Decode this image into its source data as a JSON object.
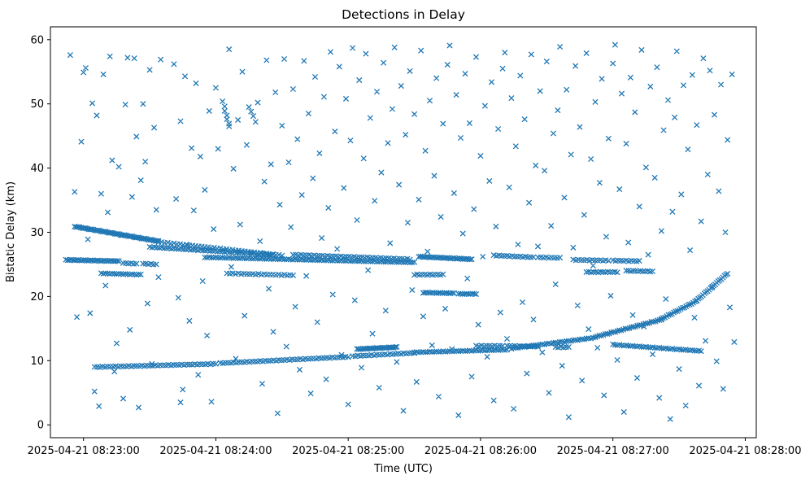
{
  "chart_data": {
    "type": "scatter",
    "title": "Detections in Delay",
    "xlabel": "Time (UTC)",
    "ylabel": "Bistatic Delay (km)",
    "marker": "x",
    "marker_color": "#1f77b4",
    "x_unit": "seconds after 2025-04-21 08:23:00",
    "x_domain_seconds": [
      -15,
      305
    ],
    "y_domain": [
      -2,
      62
    ],
    "x_tick_seconds": [
      0,
      60,
      120,
      180,
      240,
      300
    ],
    "x_tick_labels": [
      "2025-04-21 08:23:00",
      "2025-04-21 08:24:00",
      "2025-04-21 08:25:00",
      "2025-04-21 08:26:00",
      "2025-04-21 08:27:00",
      "2025-04-21 08:28:00"
    ],
    "y_ticks": [
      0,
      10,
      20,
      30,
      40,
      50,
      60
    ],
    "grid": false,
    "legend": "none",
    "track_segment_format": [
      "t_start_s",
      "t_end_s",
      "delay_start_km",
      "delay_end_km",
      "sample_interval_s"
    ],
    "track_segments": [
      [
        -4,
        34,
        30.9,
        28.6,
        0.7
      ],
      [
        30,
        86,
        27.7,
        26.5,
        1.1
      ],
      [
        34,
        90,
        28.5,
        26.4,
        1.4
      ],
      [
        -8,
        16,
        25.7,
        25.5,
        0.8
      ],
      [
        18,
        24,
        25.2,
        25.1,
        1.2
      ],
      [
        27,
        33,
        25.1,
        25.0,
        1.2
      ],
      [
        8,
        26,
        23.6,
        23.4,
        1.0
      ],
      [
        55,
        150,
        26.1,
        25.3,
        1.0
      ],
      [
        65,
        95,
        23.6,
        23.3,
        1.3
      ],
      [
        95,
        148,
        26.5,
        25.8,
        1.2
      ],
      [
        152,
        176,
        26.2,
        25.8,
        0.8
      ],
      [
        186,
        204,
        26.4,
        26.1,
        1.2
      ],
      [
        206,
        216,
        26.1,
        26.0,
        1.2
      ],
      [
        222,
        238,
        25.7,
        25.6,
        1.2
      ],
      [
        240,
        252,
        25.6,
        25.5,
        1.2
      ],
      [
        150,
        163,
        23.4,
        23.4,
        1.2
      ],
      [
        228,
        242,
        23.8,
        23.8,
        1.1
      ],
      [
        246,
        258,
        24.0,
        23.9,
        1.1
      ],
      [
        5,
        60,
        9.0,
        9.5,
        1.2
      ],
      [
        62,
        120,
        9.6,
        10.6,
        1.2
      ],
      [
        122,
        150,
        10.7,
        11.2,
        1.2
      ],
      [
        150,
        192,
        11.3,
        11.7,
        1.0
      ],
      [
        124,
        142,
        11.8,
        12.1,
        0.7
      ],
      [
        194,
        232,
        11.9,
        13.6,
        1.0
      ],
      [
        232,
        262,
        13.7,
        16.4,
        0.9
      ],
      [
        262,
        278,
        16.5,
        19.3,
        0.8
      ],
      [
        278,
        292,
        19.4,
        23.6,
        0.7
      ],
      [
        178,
        190,
        12.3,
        12.3,
        1.2
      ],
      [
        192,
        206,
        12.3,
        12.2,
        1.2
      ],
      [
        214,
        220,
        12.1,
        12.1,
        1.2
      ],
      [
        240,
        280,
        12.5,
        11.5,
        1.0
      ],
      [
        154,
        168,
        20.6,
        20.5,
        0.9
      ],
      [
        170,
        178,
        20.4,
        20.4,
        0.9
      ]
    ],
    "clutter_points": [
      [
        -6,
        57.6
      ],
      [
        -4,
        36.3
      ],
      [
        -3,
        16.8
      ],
      [
        -1,
        44.1
      ],
      [
        0,
        54.9
      ],
      [
        1,
        55.6
      ],
      [
        2,
        28.9
      ],
      [
        3,
        17.4
      ],
      [
        4,
        50.1
      ],
      [
        5,
        5.2
      ],
      [
        6,
        48.2
      ],
      [
        7,
        2.9
      ],
      [
        8,
        36.0
      ],
      [
        9,
        54.6
      ],
      [
        10,
        21.7
      ],
      [
        11,
        33.1
      ],
      [
        12,
        57.4
      ],
      [
        13,
        41.2
      ],
      [
        14,
        8.3
      ],
      [
        15,
        12.7
      ],
      [
        16,
        40.2
      ],
      [
        17,
        29.5
      ],
      [
        18,
        4.1
      ],
      [
        19,
        49.9
      ],
      [
        20,
        57.2
      ],
      [
        21,
        14.8
      ],
      [
        22,
        35.5
      ],
      [
        23,
        57.1
      ],
      [
        24,
        44.9
      ],
      [
        25,
        2.7
      ],
      [
        26,
        38.1
      ],
      [
        27,
        50.0
      ],
      [
        28,
        41.0
      ],
      [
        29,
        18.9
      ],
      [
        30,
        55.3
      ],
      [
        31,
        9.5
      ],
      [
        32,
        46.3
      ],
      [
        33,
        33.5
      ],
      [
        34,
        23.0
      ],
      [
        35,
        56.9
      ],
      [
        41,
        56.2
      ],
      [
        42,
        35.2
      ],
      [
        43,
        19.8
      ],
      [
        44,
        47.3
      ],
      [
        44,
        3.5
      ],
      [
        45,
        5.5
      ],
      [
        46,
        54.3
      ],
      [
        47,
        28.0
      ],
      [
        48,
        16.2
      ],
      [
        49,
        43.1
      ],
      [
        50,
        33.4
      ],
      [
        51,
        53.2
      ],
      [
        52,
        7.8
      ],
      [
        53,
        41.8
      ],
      [
        54,
        22.4
      ],
      [
        55,
        36.6
      ],
      [
        56,
        13.9
      ],
      [
        57,
        48.9
      ],
      [
        58,
        3.6
      ],
      [
        59,
        30.5
      ],
      [
        60,
        52.5
      ],
      [
        61,
        43.0
      ],
      [
        63,
        50.4
      ],
      [
        64,
        49.6
      ],
      [
        64,
        48.9
      ],
      [
        65,
        48.2
      ],
      [
        65,
        47.6
      ],
      [
        66,
        46.9
      ],
      [
        66,
        46.5
      ],
      [
        66,
        58.5
      ],
      [
        67,
        24.6
      ],
      [
        68,
        39.9
      ],
      [
        69,
        10.3
      ],
      [
        70,
        47.5
      ],
      [
        71,
        31.2
      ],
      [
        72,
        55.0
      ],
      [
        73,
        17.0
      ],
      [
        74,
        43.6
      ],
      [
        75,
        49.5
      ],
      [
        76,
        48.8
      ],
      [
        77,
        48.1
      ],
      [
        78,
        47.2
      ],
      [
        79,
        50.2
      ],
      [
        80,
        28.6
      ],
      [
        81,
        6.4
      ],
      [
        82,
        37.9
      ],
      [
        83,
        56.8
      ],
      [
        84,
        21.2
      ],
      [
        85,
        40.6
      ],
      [
        86,
        14.5
      ],
      [
        87,
        51.8
      ],
      [
        88,
        1.8
      ],
      [
        89,
        34.3
      ],
      [
        90,
        46.6
      ],
      [
        91,
        57.0
      ],
      [
        92,
        12.2
      ],
      [
        93,
        40.9
      ],
      [
        94,
        30.8
      ],
      [
        95,
        52.3
      ],
      [
        96,
        18.4
      ],
      [
        97,
        44.5
      ],
      [
        98,
        8.6
      ],
      [
        99,
        35.8
      ],
      [
        100,
        56.7
      ],
      [
        101,
        23.2
      ],
      [
        102,
        48.5
      ],
      [
        103,
        4.9
      ],
      [
        104,
        38.4
      ],
      [
        105,
        54.2
      ],
      [
        106,
        16.0
      ],
      [
        107,
        42.3
      ],
      [
        108,
        29.1
      ],
      [
        109,
        51.1
      ],
      [
        110,
        7.1
      ],
      [
        111,
        33.8
      ],
      [
        112,
        58.1
      ],
      [
        113,
        20.3
      ],
      [
        114,
        45.7
      ],
      [
        115,
        27.4
      ],
      [
        116,
        55.8
      ],
      [
        117,
        10.9
      ],
      [
        118,
        36.9
      ],
      [
        119,
        50.8
      ],
      [
        120,
        3.2
      ],
      [
        121,
        44.3
      ],
      [
        122,
        58.7
      ],
      [
        123,
        19.4
      ],
      [
        124,
        31.9
      ],
      [
        125,
        53.7
      ],
      [
        126,
        8.9
      ],
      [
        127,
        41.5
      ],
      [
        128,
        57.8
      ],
      [
        129,
        24.1
      ],
      [
        130,
        47.8
      ],
      [
        131,
        14.2
      ],
      [
        132,
        34.9
      ],
      [
        133,
        51.9
      ],
      [
        134,
        5.8
      ],
      [
        135,
        39.3
      ],
      [
        136,
        56.4
      ],
      [
        137,
        17.8
      ],
      [
        138,
        43.9
      ],
      [
        139,
        28.3
      ],
      [
        140,
        49.2
      ],
      [
        141,
        58.8
      ],
      [
        142,
        9.8
      ],
      [
        143,
        37.4
      ],
      [
        144,
        52.8
      ],
      [
        145,
        2.2
      ],
      [
        146,
        45.2
      ],
      [
        147,
        31.5
      ],
      [
        148,
        55.1
      ],
      [
        149,
        21.0
      ],
      [
        150,
        48.4
      ],
      [
        151,
        6.7
      ],
      [
        152,
        35.1
      ],
      [
        153,
        58.3
      ],
      [
        154,
        16.9
      ],
      [
        155,
        42.7
      ],
      [
        156,
        27.0
      ],
      [
        157,
        50.5
      ],
      [
        158,
        12.4
      ],
      [
        159,
        38.8
      ],
      [
        160,
        54.0
      ],
      [
        161,
        4.4
      ],
      [
        162,
        32.4
      ],
      [
        163,
        46.9
      ],
      [
        164,
        18.1
      ],
      [
        165,
        56.1
      ],
      [
        166,
        59.1
      ],
      [
        167,
        11.8
      ],
      [
        168,
        36.1
      ],
      [
        169,
        51.4
      ],
      [
        170,
        1.5
      ],
      [
        171,
        44.7
      ],
      [
        172,
        29.8
      ],
      [
        173,
        54.7
      ],
      [
        174,
        22.8
      ],
      [
        175,
        47.0
      ],
      [
        176,
        7.5
      ],
      [
        177,
        33.6
      ],
      [
        178,
        57.3
      ],
      [
        179,
        15.6
      ],
      [
        180,
        41.9
      ],
      [
        181,
        26.2
      ],
      [
        182,
        49.7
      ],
      [
        183,
        10.6
      ],
      [
        184,
        38.0
      ],
      [
        185,
        53.4
      ],
      [
        186,
        3.8
      ],
      [
        187,
        30.9
      ],
      [
        188,
        46.1
      ],
      [
        189,
        17.5
      ],
      [
        190,
        55.5
      ],
      [
        191,
        58.0
      ],
      [
        192,
        13.4
      ],
      [
        193,
        37.0
      ],
      [
        194,
        50.9
      ],
      [
        195,
        2.5
      ],
      [
        196,
        43.4
      ],
      [
        197,
        28.1
      ],
      [
        198,
        54.4
      ],
      [
        199,
        19.1
      ],
      [
        200,
        47.6
      ],
      [
        201,
        8.0
      ],
      [
        202,
        34.6
      ],
      [
        203,
        57.7
      ],
      [
        204,
        16.4
      ],
      [
        205,
        40.4
      ],
      [
        206,
        27.8
      ],
      [
        207,
        52.0
      ],
      [
        208,
        11.3
      ],
      [
        209,
        39.6
      ],
      [
        210,
        56.6
      ],
      [
        211,
        5.0
      ],
      [
        212,
        31.0
      ],
      [
        213,
        45.4
      ],
      [
        214,
        21.9
      ],
      [
        215,
        49.0
      ],
      [
        216,
        58.9
      ],
      [
        217,
        9.2
      ],
      [
        218,
        35.4
      ],
      [
        219,
        52.2
      ],
      [
        220,
        1.2
      ],
      [
        221,
        42.1
      ],
      [
        222,
        27.6
      ],
      [
        223,
        55.9
      ],
      [
        224,
        18.6
      ],
      [
        225,
        46.4
      ],
      [
        226,
        6.9
      ],
      [
        227,
        32.7
      ],
      [
        228,
        57.9
      ],
      [
        229,
        14.9
      ],
      [
        230,
        41.4
      ],
      [
        231,
        24.8
      ],
      [
        232,
        50.3
      ],
      [
        233,
        12.0
      ],
      [
        234,
        37.7
      ],
      [
        235,
        53.9
      ],
      [
        236,
        4.6
      ],
      [
        237,
        29.3
      ],
      [
        238,
        44.6
      ],
      [
        239,
        20.1
      ],
      [
        240,
        56.3
      ],
      [
        241,
        59.2
      ],
      [
        242,
        10.1
      ],
      [
        243,
        36.7
      ],
      [
        244,
        51.6
      ],
      [
        245,
        2.0
      ],
      [
        246,
        43.8
      ],
      [
        247,
        28.4
      ],
      [
        248,
        54.1
      ],
      [
        249,
        17.1
      ],
      [
        250,
        48.7
      ],
      [
        251,
        7.3
      ],
      [
        252,
        34.0
      ],
      [
        253,
        58.4
      ],
      [
        254,
        15.3
      ],
      [
        255,
        40.1
      ],
      [
        256,
        26.5
      ],
      [
        257,
        52.7
      ],
      [
        258,
        11.0
      ],
      [
        259,
        38.5
      ],
      [
        260,
        55.7
      ],
      [
        261,
        4.2
      ],
      [
        262,
        30.2
      ],
      [
        263,
        45.9
      ],
      [
        264,
        19.6
      ],
      [
        265,
        50.6
      ],
      [
        266,
        0.9
      ],
      [
        267,
        33.2
      ],
      [
        268,
        47.9
      ],
      [
        269,
        58.2
      ],
      [
        270,
        8.7
      ],
      [
        271,
        35.9
      ],
      [
        272,
        52.9
      ],
      [
        273,
        3.0
      ],
      [
        274,
        42.9
      ],
      [
        275,
        27.2
      ],
      [
        276,
        54.5
      ],
      [
        277,
        16.7
      ],
      [
        278,
        46.7
      ],
      [
        279,
        6.1
      ],
      [
        280,
        31.7
      ],
      [
        281,
        57.1
      ],
      [
        282,
        13.1
      ],
      [
        283,
        39.0
      ],
      [
        284,
        55.2
      ],
      [
        285,
        21.4
      ],
      [
        286,
        48.3
      ],
      [
        287,
        9.9
      ],
      [
        288,
        36.4
      ],
      [
        289,
        53.0
      ],
      [
        290,
        5.6
      ],
      [
        291,
        30.0
      ],
      [
        292,
        44.4
      ],
      [
        293,
        18.3
      ],
      [
        294,
        54.6
      ],
      [
        295,
        12.9
      ]
    ]
  }
}
